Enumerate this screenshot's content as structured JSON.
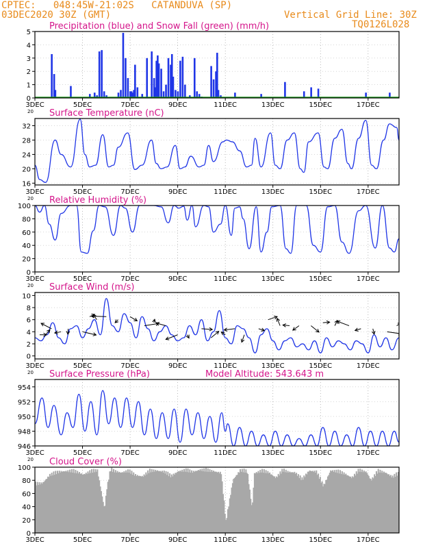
{
  "header": {
    "line1": "CPTEC:   048:45W-21:02S   CATANDUVA (SP)",
    "line2": "03DEC2020 30Z (GMT)",
    "grid_note": "Vertical Grid Line: 30Z",
    "code": "TQ0126L028",
    "color": "#e88a1a"
  },
  "colors": {
    "title": "#d4148a",
    "line": "#1f35e6",
    "precip": "#1f35e6",
    "snow": "#1a9a1a",
    "cloud": "#a8a8a8",
    "frame": "#000000"
  },
  "x_axis": {
    "tick_labels": [
      "3DEC",
      "5DEC",
      "7DEC",
      "9DEC",
      "11DEC",
      "13DEC",
      "15DEC",
      "17DEC"
    ],
    "tick_days": [
      0,
      2,
      4,
      6,
      8,
      10,
      12,
      14
    ],
    "range_days": [
      0,
      15.3
    ],
    "stub": "20"
  },
  "panels": {
    "precip": {
      "title": "Precipitation (blue) and Snow Fall (green) (mm/h)",
      "ylim": [
        0,
        5
      ],
      "yticks": [
        0,
        1,
        2,
        3,
        4,
        5
      ]
    },
    "temp": {
      "title": "Surface Temperature (nC)",
      "ylim": [
        15.5,
        34
      ],
      "yticks": [
        16,
        20,
        24,
        28,
        32
      ]
    },
    "rh": {
      "title": "Relative Humidity (%)",
      "ylim": [
        0,
        100
      ],
      "yticks": [
        0,
        20,
        40,
        60,
        80,
        100
      ]
    },
    "wind": {
      "title": "Surface Wind (m/s)",
      "ylim": [
        -0.5,
        10.5
      ],
      "yticks": [
        0,
        2,
        4,
        6,
        8,
        10
      ]
    },
    "pressure": {
      "title": "Surface Pressure (hPa)",
      "altitude": "Model Altitude: 543.643 m",
      "ylim": [
        946,
        955
      ],
      "yticks": [
        946,
        948,
        950,
        952,
        954
      ]
    },
    "cloud": {
      "title": "Cloud Cover (%)",
      "ylim": [
        0,
        100
      ],
      "yticks": [
        0,
        20,
        40,
        60,
        80,
        100
      ]
    }
  },
  "chart_data": [
    {
      "type": "bar",
      "title": "Precipitation (blue) and Snow Fall (green) (mm/h)",
      "ylim": [
        0,
        5
      ],
      "x_unit": "days since 3DEC",
      "series": [
        {
          "name": "Precipitation",
          "x": [
            0.7,
            0.8,
            0.85,
            1.5,
            2.3,
            2.5,
            2.6,
            2.7,
            2.8,
            2.9,
            3.0,
            3.5,
            3.6,
            3.7,
            3.8,
            3.9,
            4.0,
            4.05,
            4.1,
            4.15,
            4.2,
            4.3,
            4.5,
            4.7,
            4.9,
            5.0,
            5.05,
            5.1,
            5.15,
            5.2,
            5.3,
            5.4,
            5.5,
            5.6,
            5.7,
            5.75,
            5.8,
            5.9,
            6.0,
            6.1,
            6.2,
            6.3,
            6.5,
            6.7,
            6.8,
            6.9,
            7.0,
            7.4,
            7.5,
            7.6,
            7.65,
            7.7,
            7.8,
            8.4,
            9.5,
            10.5,
            11.3,
            11.6,
            11.9,
            13.9,
            14.9
          ],
          "values": [
            3.3,
            1.8,
            0.6,
            0.9,
            0.3,
            0.4,
            0.2,
            3.5,
            3.6,
            0.5,
            0.2,
            0.4,
            0.6,
            4.9,
            3.0,
            1.5,
            0.5,
            0.5,
            0.4,
            0.6,
            2.5,
            0.8,
            0.3,
            3.0,
            3.5,
            1.5,
            0.8,
            2.8,
            3.2,
            2.6,
            2.2,
            0.5,
            1.0,
            3.0,
            2.5,
            3.3,
            1.6,
            0.6,
            0.5,
            2.8,
            3.1,
            1.0,
            0.2,
            3.0,
            0.5,
            0.3,
            0.1,
            2.4,
            1.4,
            2.0,
            3.4,
            0.6,
            0.2,
            0.4,
            0.3,
            1.2,
            0.5,
            0.8,
            0.7,
            0.4,
            0.4
          ]
        },
        {
          "name": "Snow Fall",
          "x": [
            0,
            15.3
          ],
          "values": [
            0,
            0
          ]
        }
      ]
    },
    {
      "type": "line",
      "title": "Surface Temperature (nC)",
      "ylim": [
        15.5,
        34
      ],
      "x_unit": "days since 3DEC",
      "series": [
        {
          "name": "Surface Temperature",
          "x": [
            0.0,
            0.2,
            0.45,
            0.85,
            1.1,
            1.5,
            1.9,
            2.1,
            2.3,
            2.55,
            2.85,
            3.1,
            3.3,
            3.5,
            3.9,
            4.2,
            4.5,
            4.9,
            5.1,
            5.3,
            5.55,
            5.9,
            6.1,
            6.3,
            6.55,
            6.9,
            7.1,
            7.3,
            7.5,
            7.9,
            8.05,
            8.3,
            8.6,
            8.9,
            9.1,
            9.25,
            9.5,
            9.9,
            10.1,
            10.3,
            10.6,
            10.9,
            11.15,
            11.3,
            11.5,
            11.9,
            12.15,
            12.3,
            12.6,
            12.9,
            13.15,
            13.3,
            13.6,
            13.9,
            14.15,
            14.35,
            14.65,
            14.9,
            15.2,
            15.3
          ],
          "values": [
            21,
            17,
            16.2,
            28,
            24,
            20.5,
            33.8,
            24,
            20.5,
            21,
            29.5,
            20.5,
            21,
            26,
            30,
            19.8,
            21,
            28,
            21.5,
            20,
            20.5,
            26.5,
            20,
            20.5,
            23.5,
            20.5,
            21,
            26.5,
            22,
            27.5,
            28,
            27.5,
            25,
            20.5,
            21,
            28.5,
            20.5,
            30,
            21,
            20,
            28,
            30,
            20,
            19,
            27.5,
            30,
            20.5,
            20,
            28.5,
            31,
            21.5,
            20,
            28.5,
            33.5,
            21,
            20,
            28,
            32.5,
            31.5,
            28
          ]
        }
      ]
    },
    {
      "type": "line",
      "title": "Relative Humidity (%)",
      "ylim": [
        0,
        100
      ],
      "x_unit": "days since 3DEC",
      "series": [
        {
          "name": "Relative Humidity",
          "x": [
            0.0,
            0.2,
            0.4,
            0.6,
            0.85,
            1.1,
            1.5,
            1.75,
            1.95,
            2.2,
            2.45,
            2.7,
            2.95,
            3.3,
            3.6,
            3.8,
            4.1,
            4.4,
            4.7,
            5.0,
            5.3,
            5.6,
            5.85,
            6.05,
            6.25,
            6.4,
            6.6,
            6.75,
            7.1,
            7.3,
            7.5,
            7.8,
            8.0,
            8.25,
            8.4,
            8.6,
            8.75,
            9.0,
            9.3,
            9.5,
            9.75,
            9.95,
            10.3,
            10.55,
            10.75,
            11.0,
            11.4,
            11.7,
            12.0,
            12.3,
            12.6,
            12.9,
            13.2,
            13.6,
            13.9,
            14.3,
            14.6,
            14.9,
            15.1,
            15.3
          ],
          "values": [
            100,
            90,
            100,
            72,
            48,
            88,
            100,
            100,
            30,
            28,
            62,
            100,
            98,
            55,
            100,
            96,
            60,
            100,
            100,
            100,
            98,
            74,
            100,
            96,
            99,
            78,
            100,
            68,
            100,
            98,
            60,
            72,
            100,
            55,
            96,
            98,
            80,
            35,
            98,
            30,
            60,
            98,
            100,
            35,
            28,
            100,
            100,
            40,
            30,
            98,
            100,
            45,
            28,
            92,
            100,
            36,
            100,
            36,
            30,
            50
          ]
        }
      ]
    },
    {
      "type": "line",
      "title": "Surface Wind (m/s)",
      "ylim": [
        -0.5,
        10.5
      ],
      "x_unit": "days since 3DEC",
      "series": [
        {
          "name": "Surface Wind speed",
          "x": [
            0.0,
            0.25,
            0.5,
            0.75,
            1.0,
            1.25,
            1.5,
            1.75,
            2.0,
            2.25,
            2.5,
            2.75,
            3.0,
            3.25,
            3.5,
            3.75,
            4.0,
            4.25,
            4.5,
            4.75,
            5.0,
            5.25,
            5.5,
            5.75,
            6.0,
            6.25,
            6.5,
            6.75,
            7.0,
            7.25,
            7.5,
            7.75,
            8.0,
            8.25,
            8.5,
            8.75,
            9.0,
            9.25,
            9.5,
            9.75,
            10.0,
            10.25,
            10.5,
            10.75,
            11.0,
            11.25,
            11.5,
            11.75,
            12.0,
            12.25,
            12.5,
            12.75,
            13.0,
            13.25,
            13.5,
            13.75,
            14.0,
            14.25,
            14.5,
            14.75,
            15.0,
            15.3
          ],
          "values": [
            3,
            2.5,
            3.5,
            5.5,
            3,
            2,
            4.5,
            5,
            3,
            4.5,
            6,
            3.5,
            9.5,
            5,
            4,
            7,
            5.5,
            3,
            6.5,
            4.5,
            2.5,
            4,
            5,
            3.5,
            2.5,
            3,
            5,
            3.5,
            6,
            2.5,
            4,
            7.5,
            3,
            2,
            5,
            4.5,
            3,
            0.5,
            3.5,
            4.5,
            2.5,
            1,
            2.5,
            3,
            1.5,
            2,
            1,
            2.5,
            0.5,
            3,
            1.5,
            2.5,
            2,
            1,
            2.5,
            2,
            0.5,
            3.5,
            1.5,
            3,
            1,
            3
          ]
        },
        {
          "name": "Wind vectors",
          "x": [
            0.2,
            0.45,
            0.7,
            1.1,
            1.4,
            2.0,
            2.3,
            2.6,
            3.0,
            3.5,
            4.0,
            4.6,
            5.0,
            5.5,
            6.0,
            6.4,
            7.0,
            7.4,
            8.0,
            8.4,
            8.8,
            9.4,
            9.8,
            10.3,
            10.7,
            11.1,
            11.6,
            12.1,
            12.6,
            13.2,
            13.7,
            14.2,
            14.8,
            15.2
          ],
          "values": [
            3.5,
            3.5,
            4.5,
            4,
            4.5,
            4,
            6.5,
            6,
            6.5,
            6,
            6.5,
            5,
            5.5,
            5,
            3.5,
            3.5,
            4.5,
            3,
            3.5,
            4.5,
            3.5,
            4.5,
            6,
            5,
            5,
            5,
            5,
            5.5,
            5,
            5,
            4.5,
            4.5,
            4,
            5
          ]
        }
      ]
    },
    {
      "type": "line",
      "title": "Surface Pressure (hPa)",
      "ylim": [
        946,
        955
      ],
      "x_unit": "days since 3DEC",
      "series": [
        {
          "name": "Surface Pressure",
          "x": [
            0.0,
            0.3,
            0.55,
            0.8,
            1.1,
            1.35,
            1.6,
            1.85,
            2.1,
            2.35,
            2.6,
            2.85,
            3.1,
            3.35,
            3.6,
            3.85,
            4.1,
            4.35,
            4.6,
            4.85,
            5.1,
            5.35,
            5.6,
            5.85,
            6.1,
            6.35,
            6.6,
            6.85,
            7.1,
            7.35,
            7.6,
            7.85,
            8.0,
            8.1,
            8.35,
            8.6,
            8.85,
            9.1,
            9.35,
            9.6,
            9.85,
            10.1,
            10.35,
            10.6,
            10.85,
            11.1,
            11.35,
            11.6,
            11.85,
            12.1,
            12.35,
            12.6,
            12.85,
            13.1,
            13.35,
            13.6,
            13.85,
            14.1,
            14.35,
            14.6,
            14.85,
            15.1,
            15.3
          ],
          "values": [
            949,
            952.5,
            948.5,
            951.5,
            947.5,
            950.5,
            948.5,
            953,
            948,
            952,
            947.5,
            953.5,
            949,
            952.5,
            948.5,
            952.5,
            948.5,
            952,
            947.5,
            951,
            947,
            950.5,
            947,
            951,
            946.5,
            951,
            947.5,
            950.5,
            947,
            950,
            946.5,
            950.5,
            948,
            949,
            946,
            948.5,
            946,
            948,
            946,
            947.5,
            946,
            948,
            946,
            947.5,
            946,
            947,
            946,
            947.5,
            946,
            948.5,
            946,
            948,
            946,
            947.5,
            946,
            948.5,
            946,
            948,
            946,
            948,
            946,
            948,
            946.5
          ]
        }
      ]
    },
    {
      "type": "area",
      "title": "Cloud Cover (%)",
      "ylim": [
        0,
        100
      ],
      "x_unit": "days since 3DEC",
      "series": [
        {
          "name": "Cloud Cover",
          "x": [
            0.0,
            0.3,
            0.6,
            0.85,
            1.0,
            1.2,
            1.5,
            1.8,
            2.0,
            2.3,
            2.6,
            2.9,
            3.0,
            3.15,
            3.3,
            3.6,
            3.9,
            4.2,
            4.5,
            4.8,
            5.1,
            5.4,
            5.7,
            6.0,
            6.3,
            6.6,
            6.9,
            7.2,
            7.5,
            7.8,
            8.0,
            8.3,
            8.6,
            8.9,
            9.1,
            9.2,
            9.5,
            9.8,
            10.1,
            10.4,
            10.6,
            10.9,
            11.2,
            11.5,
            11.8,
            12.1,
            12.4,
            12.7,
            13.0,
            13.3,
            13.6,
            13.9,
            14.1,
            14.4,
            14.7,
            15.0,
            15.3
          ],
          "values": [
            78,
            80,
            92,
            95,
            97,
            98,
            98,
            96,
            93,
            97,
            99,
            40,
            72,
            100,
            98,
            96,
            98,
            92,
            90,
            98,
            99,
            97,
            90,
            98,
            99,
            97,
            100,
            99,
            98,
            95,
            20,
            85,
            99,
            97,
            40,
            95,
            98,
            96,
            88,
            99,
            97,
            96,
            85,
            99,
            97,
            75,
            99,
            97,
            94,
            88,
            99,
            97,
            84,
            98,
            96,
            89,
            95
          ]
        }
      ]
    }
  ]
}
